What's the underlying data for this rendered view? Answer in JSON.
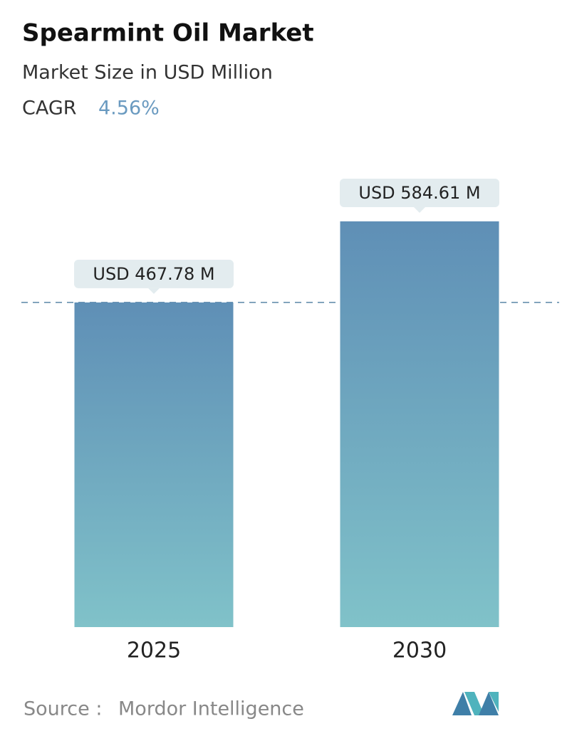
{
  "chart_data": {
    "type": "bar",
    "title": "Spearmint Oil Market",
    "subtitle": "Market Size in USD Million",
    "cagr_label": "CAGR",
    "cagr": "4.56%",
    "categories": [
      "2025",
      "2030"
    ],
    "values": [
      467.78,
      584.61
    ],
    "value_labels": [
      "USD 467.78 M",
      "USD 584.61 M"
    ],
    "color_top": "#5f8fb6",
    "color_bottom": "#80c2c9",
    "source_label": "Source :",
    "source": "Mordor Intelligence"
  }
}
